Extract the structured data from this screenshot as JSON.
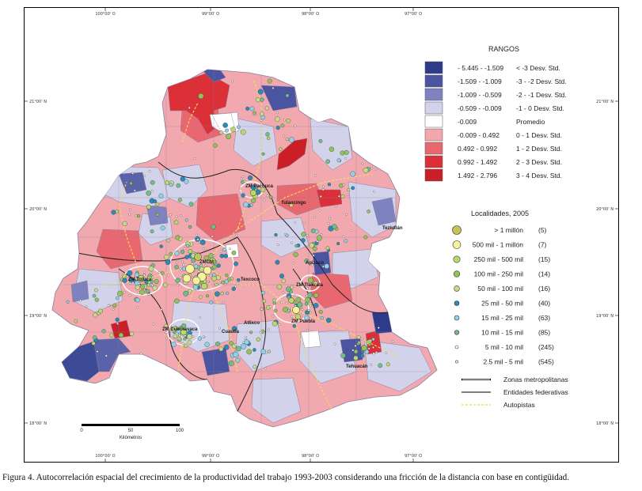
{
  "figure": {
    "caption": "Figura 4. Autocorrelación espacial del crecimiento de la productividad del trabajo 1993-2003 considerando una fricción de la distancia con base en contigüidad."
  },
  "axes": {
    "top_ticks": [
      "100°00' O",
      "99°00' O",
      "98°00' O",
      "97°00' O"
    ],
    "bottom_ticks": [
      "100°00' O",
      "99°00' O",
      "98°00' O",
      "97°00' O"
    ],
    "left_ticks": [
      "21°00' N",
      "20°00' N",
      "19°00' N",
      "18°00' N"
    ],
    "right_ticks": [
      "21°00' N",
      "20°00' N",
      "19°00' N",
      "18°00' N"
    ]
  },
  "legend_rangos": {
    "title": "RANGOS",
    "items": [
      {
        "range": "- 5.445  -  -1.509",
        "desc": "< -3 Desv. Std.",
        "color": "#2e3a8a"
      },
      {
        "range": "-1.509  -  -1.009",
        "desc": "-3 - -2 Desv. Std.",
        "color": "#4b54a0"
      },
      {
        "range": "-1.009  -  -0.509",
        "desc": "-2 - -1 Desv. Std.",
        "color": "#7e83bf"
      },
      {
        "range": "-0.509  -  -0.009",
        "desc": "-1 - 0 Desv. Std.",
        "color": "#d2d3ea"
      },
      {
        "range": "-0.009",
        "desc": "Promedio",
        "color": "#ffffff"
      },
      {
        "range": "-0.009  -  0.492",
        "desc": "0 - 1 Desv. Std.",
        "color": "#f3a7ad"
      },
      {
        "range": "0.492  -  0.992",
        "desc": "1 - 2 Desv. Std.",
        "color": "#e9676f"
      },
      {
        "range": "0.992  -  1.492",
        "desc": "2 - 3 Desv. Std.",
        "color": "#dc3038"
      },
      {
        "range": "1.492  -  2.796",
        "desc": "3 - 4 Desv. Std.",
        "color": "#cb1f27"
      }
    ]
  },
  "legend_localidades": {
    "title": "Localidades, 2005",
    "items": [
      {
        "label": "> 1 millón",
        "count": "(5)",
        "color": "#c4c45a"
      },
      {
        "label": "500 mil - 1 millón",
        "count": "(7)",
        "color": "#f6f29a"
      },
      {
        "label": "250 mil - 500 mil",
        "count": "(15)",
        "color": "#b9d96c"
      },
      {
        "label": "100 mil - 250 mil",
        "count": "(14)",
        "color": "#8fc45a"
      },
      {
        "label": "50 mil - 100 mil",
        "count": "(16)",
        "color": "#c9d98a"
      },
      {
        "label": "25 mil - 50 mil",
        "count": "(40)",
        "color": "#2b8ab8"
      },
      {
        "label": "15 mil - 25 mil",
        "count": "(63)",
        "color": "#8fd0ea"
      },
      {
        "label": "10 mil - 15 mil",
        "count": "(85)",
        "color": "#6fbf8a"
      },
      {
        "label": "5 mil - 10 mil",
        "count": "(245)",
        "color": "#ffffff"
      },
      {
        "label": "2.5 mil - 5 mil",
        "count": "(545)",
        "color": "#ffffff"
      }
    ]
  },
  "legend_lines": {
    "items": [
      {
        "label": "Zonas metropolitanas",
        "color": "#ffffff",
        "stroke": "#000000"
      },
      {
        "label": "Entidades federativas",
        "color": "#000000",
        "stroke": "#000000"
      },
      {
        "label": "Autopistas",
        "color": "#f5e05a",
        "stroke": "#f5e05a"
      }
    ]
  },
  "scale_bar": {
    "labels": [
      "0",
      "50",
      "100"
    ],
    "unit": "Kilómetros"
  },
  "places": [
    {
      "name": "ZM Pachuca"
    },
    {
      "name": "Tulancingo"
    },
    {
      "name": "Teziutlán"
    },
    {
      "name": "ZMCM"
    },
    {
      "name": "ZM Toluca"
    },
    {
      "name": "Texcoco"
    },
    {
      "name": "ZM Tlaxcala"
    },
    {
      "name": "Apizaco"
    },
    {
      "name": "ZM Puebla"
    },
    {
      "name": "Atlixco"
    },
    {
      "name": "Cuautla"
    },
    {
      "name": "ZM Cuernavaca"
    },
    {
      "name": "Tehuacán"
    }
  ]
}
